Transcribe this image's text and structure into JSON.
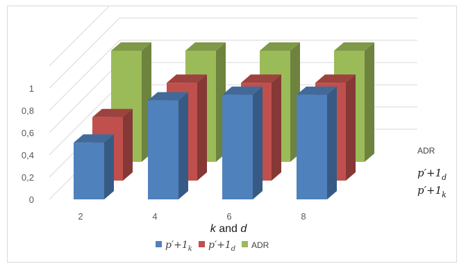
{
  "chart_data": {
    "type": "bar",
    "style": "3d-clustered-depth",
    "xlabel": "k and d",
    "categories": [
      "2",
      "4",
      "6",
      "8"
    ],
    "y_ticks": [
      "0",
      "0,2",
      "0,4",
      "0,6",
      "0,8",
      "1"
    ],
    "ylim": [
      0,
      1.2
    ],
    "grid": true,
    "legend_position": "bottom",
    "series": [
      {
        "name": "p'+1k",
        "label_main": "p′+1",
        "label_sub": "k",
        "color": "#4f81bd",
        "values": [
          0.51,
          0.89,
          0.94,
          0.94
        ]
      },
      {
        "name": "p'+1d",
        "label_main": "p′+1",
        "label_sub": "d",
        "color": "#c0504d",
        "values": [
          0.57,
          0.88,
          0.88,
          0.88
        ]
      },
      {
        "name": "ADR",
        "label_main": "ADR",
        "label_sub": "",
        "color": "#9bbb59",
        "values": [
          1.0,
          1.0,
          1.0,
          1.0
        ]
      }
    ]
  }
}
